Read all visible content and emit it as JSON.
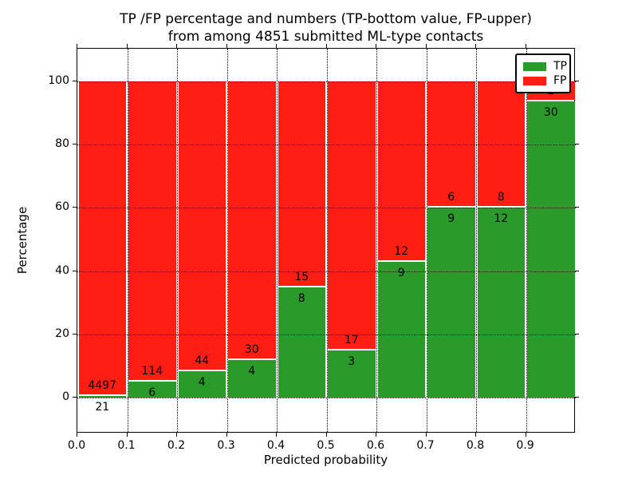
{
  "chart_data": {
    "type": "bar",
    "stacked": true,
    "normalization": "each 0.1-wide bin stacks to 100 percent; counts annotated on bars (TP bottom, FP upper)",
    "title_line1": "TP /FP percentage and numbers (TP-bottom value, FP-upper)",
    "title_line2": "from among 4851 submitted ML-type contacts",
    "xlabel": "Predicted probability",
    "ylabel": "Percentage",
    "total_contacts": 4851,
    "bin_edges": [
      0.0,
      0.1,
      0.2,
      0.3,
      0.4,
      0.5,
      0.6,
      0.7,
      0.8,
      0.9,
      1.0
    ],
    "xlim": [
      0.0,
      1.0
    ],
    "ylim": [
      -11.4,
      110.4
    ],
    "xtick_values": [
      0.0,
      0.1,
      0.2,
      0.3,
      0.4,
      0.5,
      0.6,
      0.7,
      0.8,
      0.9
    ],
    "xtick_labels": [
      "0.0",
      "0.1",
      "0.2",
      "0.3",
      "0.4",
      "0.5",
      "0.6",
      "0.7",
      "0.8",
      "0.9"
    ],
    "ytick_values": [
      0,
      20,
      40,
      60,
      80,
      100
    ],
    "ytick_labels": [
      "0",
      "20",
      "40",
      "60",
      "80",
      "100"
    ],
    "grid": "dotted, both axes, drawn over bars",
    "legend_position": "upper right",
    "series": [
      {
        "name": "TP",
        "color": "#2a9a2a",
        "counts": [
          21,
          6,
          4,
          4,
          8,
          3,
          9,
          9,
          12,
          30
        ],
        "pct": [
          0.46,
          5.0,
          8.33,
          11.76,
          34.78,
          15.0,
          42.86,
          60.0,
          60.0,
          93.75
        ]
      },
      {
        "name": "FP",
        "color": "#ff1e14",
        "counts": [
          4497,
          114,
          44,
          30,
          15,
          17,
          12,
          6,
          8,
          2
        ],
        "pct": [
          99.54,
          95.0,
          91.67,
          88.24,
          65.22,
          85.0,
          57.14,
          40.0,
          40.0,
          6.25
        ]
      }
    ]
  }
}
